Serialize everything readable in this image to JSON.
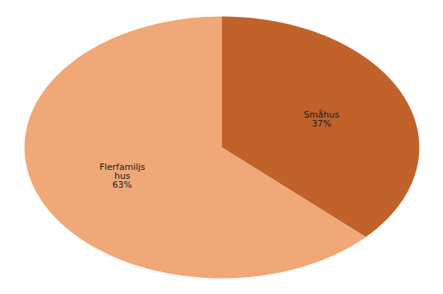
{
  "chart_data": {
    "type": "pie",
    "categories": [
      "Småhus",
      "Flerfamiljs\nhus"
    ],
    "values": [
      37,
      63
    ],
    "value_labels": [
      "37%",
      "63%"
    ],
    "colors": [
      "#C0622A",
      "#F0A878"
    ],
    "data_labels": true
  }
}
